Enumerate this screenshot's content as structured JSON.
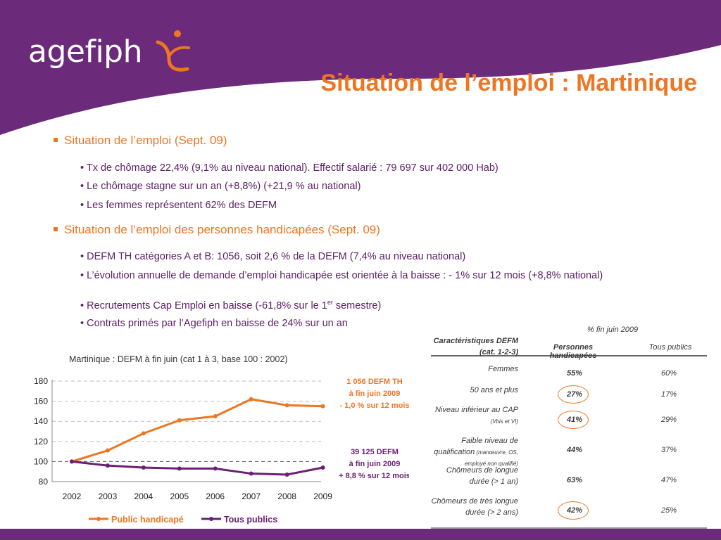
{
  "brand": {
    "logo_text": "agefiph",
    "purple": "#6b2a7a",
    "orange": "#ee7623"
  },
  "title": "Situation de l’emploi : Martinique",
  "sections": [
    {
      "heading": "Situation de l’emploi (Sept. 09)",
      "bullets": [
        "• Tx de chômage 22,4% (9,1% au niveau national). Effectif salarié : 79 697 sur 402 000 Hab)",
        "• Le chômage stagne sur un an (+8,8%) (+21,9 % au national)",
        "• Les femmes représentent 62% des DEFM"
      ]
    },
    {
      "heading": "Situation de l’emploi des personnes handicapées (Sept. 09)",
      "bullets": [
        "• DEFM TH catégories A et B: 1056, soit 2,6 % de la DEFM (7,4% au niveau national)",
        "• L’évolution annuelle de demande d’emploi handicapée est orientée à la baisse : - 1% sur 12 mois (+8,8% national)",
        "• Recrutements Cap Emploi en baisse (-61,8% sur le 1",
        "• Contrats primés par l’Agefiph en baisse de 24% sur un an"
      ],
      "sup_text": "er",
      "bullet3_tail": " semestre)"
    }
  ],
  "chart_data": {
    "type": "line",
    "title": "Martinique : DEFM à fin juin (cat 1 à 3, base 100 : 2002)",
    "categories": [
      "2002",
      "2003",
      "2004",
      "2005",
      "2006",
      "2007",
      "2008",
      "2009"
    ],
    "ylim": [
      80,
      180
    ],
    "yticks": [
      80,
      100,
      120,
      140,
      160,
      180
    ],
    "grid": true,
    "legend_position": "bottom",
    "series": [
      {
        "name": "Public handicapé",
        "color": "#ee7623",
        "values": [
          100,
          111,
          128,
          141,
          145,
          162,
          156,
          155
        ]
      },
      {
        "name": "Tous publics",
        "color": "#6b1f75",
        "values": [
          100,
          96,
          94,
          93,
          93,
          88,
          87,
          94
        ]
      }
    ],
    "annotations": [
      {
        "lines": [
          "1 056 DEFM TH",
          "à fin juin 2009",
          "- 1,0 % sur 12 mois"
        ],
        "color": "#ee7623"
      },
      {
        "lines": [
          "39 125 DEFM",
          "à fin juin 2009",
          "+ 8,8 % sur 12 mois"
        ],
        "color": "#6b1f75"
      }
    ]
  },
  "table": {
    "super_header": "% fin juin 2009",
    "row_header": "Caractéristiques DEFM (cat. 1-2-3)",
    "columns": [
      "Personnes handicapées",
      "Tous publics"
    ],
    "rows": [
      {
        "label": "Femmes",
        "note": "",
        "ph": "55%",
        "tp": "60%",
        "circled": false
      },
      {
        "label": "50 ans et plus",
        "note": "",
        "ph": "27%",
        "tp": "17%",
        "circled": true
      },
      {
        "label": "Niveau inférieur au CAP",
        "note": "(Vbis et VI)",
        "ph": "41%",
        "tp": "29%",
        "circled": true
      },
      {
        "label": "Faible niveau de qualification",
        "note": "(manœuvre, OS, employé non qualifié)",
        "ph": "44%",
        "tp": "37%",
        "circled": false
      },
      {
        "label": "Chômeurs de longue durée (> 1 an)",
        "note": "",
        "ph": "63%",
        "tp": "47%",
        "circled": false
      },
      {
        "label": "Chômeurs de très longue durée (> 2 ans)",
        "note": "",
        "ph": "42%",
        "tp": "25%",
        "circled": true
      }
    ]
  }
}
